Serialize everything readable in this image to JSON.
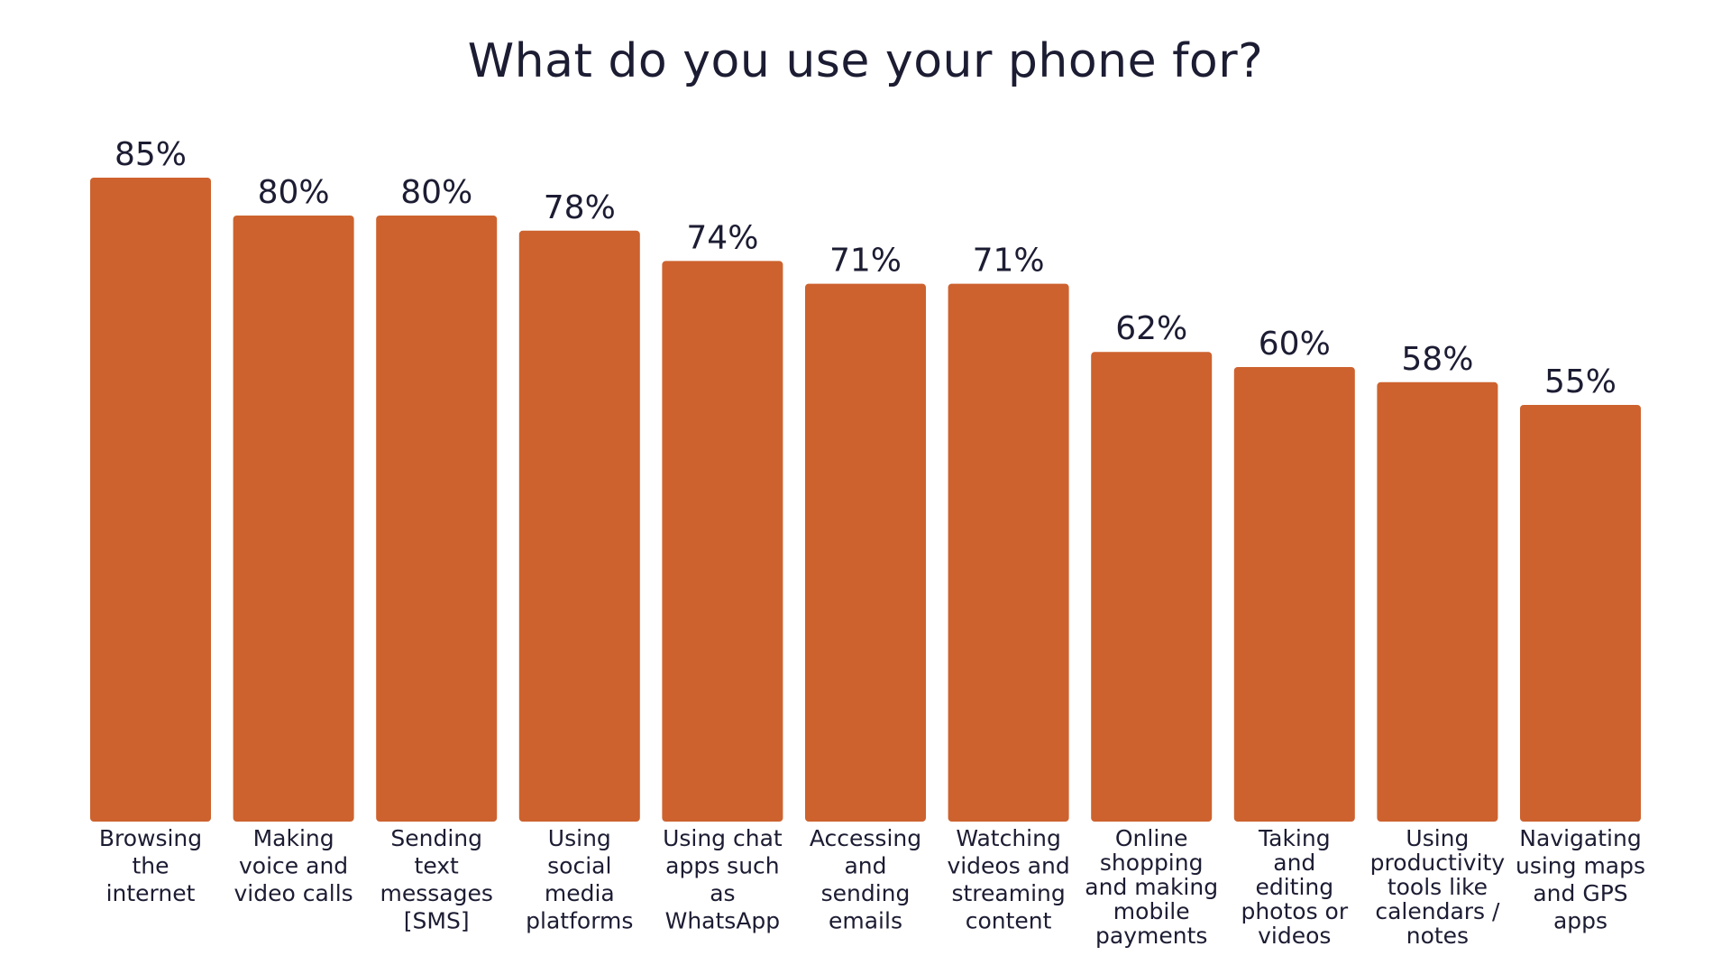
{
  "colors": {
    "bar": "#cd622e",
    "text": "#1c1c33",
    "background": "#ffffff"
  },
  "chart_data": {
    "type": "bar",
    "title": "What do you use your phone for?",
    "xlabel": "",
    "ylabel": "",
    "ylim": [
      0,
      100
    ],
    "grid": false,
    "legend": "none",
    "categories": [
      [
        "Browsing",
        "the",
        "internet"
      ],
      [
        "Making",
        "voice and",
        "video calls"
      ],
      [
        "Sending",
        "text",
        "messages",
        "[SMS]"
      ],
      [
        "Using",
        "social",
        "media",
        "platforms"
      ],
      [
        "Using chat",
        "apps such",
        "as",
        "WhatsApp"
      ],
      [
        "Accessing",
        "and",
        "sending",
        "emails"
      ],
      [
        "Watching",
        "videos and",
        "streaming",
        "content"
      ],
      [
        "Online",
        "shopping",
        "and making",
        "mobile",
        "payments"
      ],
      [
        "Taking",
        "and",
        "editing",
        "photos or",
        "videos"
      ],
      [
        "Using",
        "productivity",
        "tools like",
        "calendars /",
        "notes"
      ],
      [
        "Navigating",
        "using maps",
        "and GPS",
        "apps"
      ]
    ],
    "values": [
      85,
      80,
      80,
      78,
      74,
      71,
      71,
      62,
      60,
      58,
      55
    ],
    "value_labels": [
      "85%",
      "80%",
      "80%",
      "78%",
      "74%",
      "71%",
      "71%",
      "62%",
      "60%",
      "58%",
      "55%"
    ]
  }
}
